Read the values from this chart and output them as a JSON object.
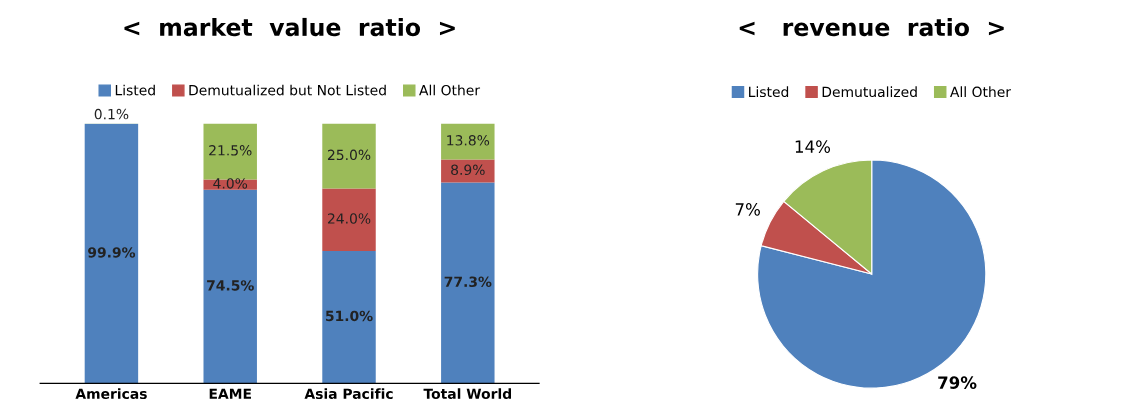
{
  "chart_data": [
    {
      "type": "bar",
      "title": "<  market  value  ratio  >",
      "stacked": true,
      "categories": [
        "Americas",
        "EAME",
        "Asia Pacific",
        "Total World"
      ],
      "ylim": [
        0,
        100
      ],
      "tick_labels": "x",
      "legend": "top",
      "grid": false,
      "series": [
        {
          "name": "Listed",
          "color": "#4f81bd",
          "values": [
            99.9,
            74.5,
            51.0,
            77.3
          ],
          "value_labels": [
            "99.9%",
            "74.5%",
            "51.0%",
            "77.3%"
          ]
        },
        {
          "name": "Demutualized but Not Listed",
          "color": "#c0504d",
          "values": [
            0,
            4.0,
            24.0,
            8.9
          ],
          "value_labels": [
            null,
            "4.0%",
            "24.0%",
            "8.9%"
          ]
        },
        {
          "name": "All Other",
          "color": "#9bbb59",
          "values": [
            0.1,
            21.5,
            25.0,
            13.8
          ],
          "value_labels": [
            "0.1%",
            "21.5%",
            "25.0%",
            "13.8%"
          ]
        }
      ]
    },
    {
      "type": "pie",
      "title": "<   revenue  ratio  >",
      "categories": [
        "Listed",
        "Demutualized",
        "All Other"
      ],
      "values": [
        79,
        7,
        14
      ],
      "colors": [
        "#4f81bd",
        "#c0504d",
        "#9bbb59"
      ],
      "value_labels": [
        "79%",
        "7%",
        "14%"
      ],
      "legend": "top"
    }
  ]
}
